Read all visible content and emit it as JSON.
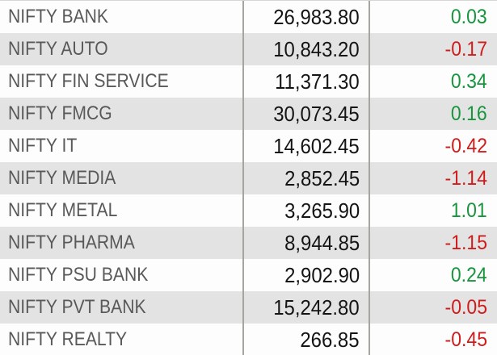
{
  "chart_data": {
    "type": "table",
    "columns": [
      "index_name",
      "last_value",
      "percent_change"
    ],
    "rows": [
      {
        "name": "NIFTY BANK",
        "value": "26,983.80",
        "change": "0.03",
        "direction": "up"
      },
      {
        "name": "NIFTY AUTO",
        "value": "10,843.20",
        "change": "-0.17",
        "direction": "down"
      },
      {
        "name": "NIFTY FIN SERVICE",
        "value": "11,371.30",
        "change": "0.34",
        "direction": "up"
      },
      {
        "name": "NIFTY FMCG",
        "value": "30,073.45",
        "change": "0.16",
        "direction": "up"
      },
      {
        "name": "NIFTY IT",
        "value": "14,602.45",
        "change": "-0.42",
        "direction": "down"
      },
      {
        "name": "NIFTY MEDIA",
        "value": "2,852.45",
        "change": "-1.14",
        "direction": "down"
      },
      {
        "name": "NIFTY METAL",
        "value": "3,265.90",
        "change": "1.01",
        "direction": "up"
      },
      {
        "name": "NIFTY PHARMA",
        "value": "8,944.85",
        "change": "-1.15",
        "direction": "down"
      },
      {
        "name": "NIFTY PSU BANK",
        "value": "2,902.90",
        "change": "0.24",
        "direction": "up"
      },
      {
        "name": "NIFTY PVT BANK",
        "value": "15,242.80",
        "change": "-0.05",
        "direction": "down"
      },
      {
        "name": "NIFTY REALTY",
        "value": "266.85",
        "change": "-0.45",
        "direction": "down"
      }
    ],
    "layout": {
      "grid": "vertical-dividers-only",
      "alternating_rows": true
    }
  },
  "colors": {
    "positive": "#17953c",
    "negative": "#d01b1b",
    "label": "#595959",
    "value": "#141414",
    "row_alt": "#e3e3e3",
    "divider": "#a6a69e"
  }
}
